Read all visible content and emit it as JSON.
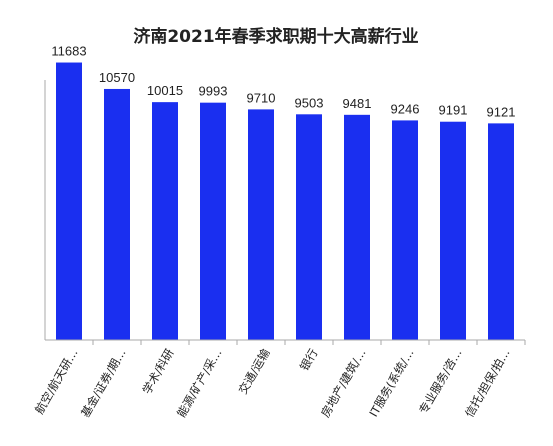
{
  "chart_data": {
    "type": "bar",
    "title": "济南2021年春季求职期十大高薪行业",
    "xlabel": "",
    "ylabel": "",
    "categories": [
      "航空/航天研…",
      "基金/证券/期…",
      "学术/科研",
      "能源/矿产/采…",
      "交通/运输",
      "银行",
      "房地产/建筑/…",
      "IT服务(系统/…",
      "专业服务/咨…",
      "信托/担保/拍…"
    ],
    "values": [
      11683,
      10570,
      10015,
      9993,
      9710,
      9503,
      9481,
      9246,
      9191,
      9121
    ],
    "ylim": [
      0,
      12000
    ],
    "grid": false,
    "bar_color": "#1a2ff0",
    "axis_color": "#aaaaaa"
  }
}
